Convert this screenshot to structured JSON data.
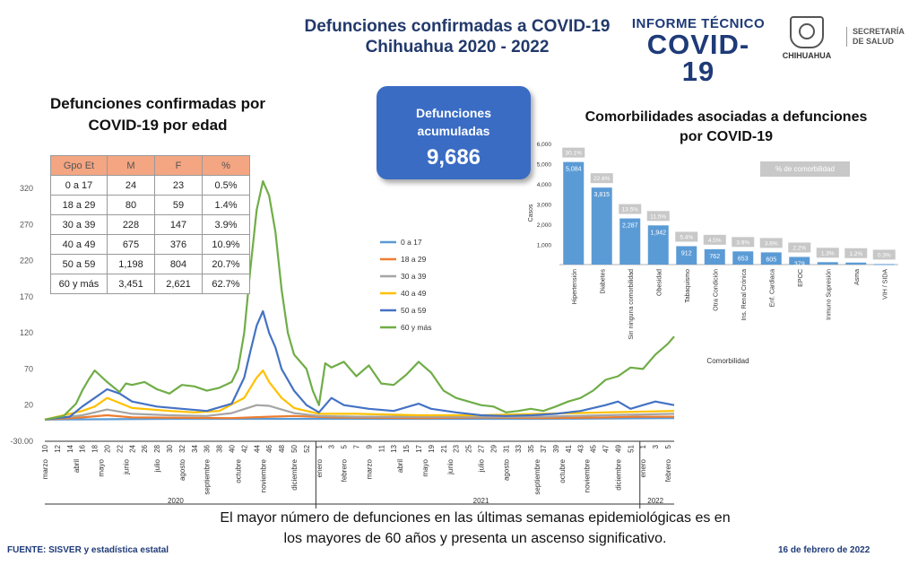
{
  "header": {
    "title_line1": "Defunciones confirmadas a COVID-19",
    "title_line2": "Chihuahua 2020 - 2022",
    "informe_line1": "INFORME TÉCNICO",
    "informe_line2": "COVID-19",
    "state_name": "CHIHUAHUA",
    "secretaria_line1": "SECRETARÍA",
    "secretaria_line2": "DE SALUD"
  },
  "age_section": {
    "title_line1": "Defunciones confirmadas por",
    "title_line2": "COVID-19 por edad",
    "headers": [
      "Gpo Et",
      "M",
      "F",
      "%"
    ],
    "rows": [
      [
        "0 a 17",
        "24",
        "23",
        "0.5%"
      ],
      [
        "18 a 29",
        "80",
        "59",
        "1.4%"
      ],
      [
        "30 a 39",
        "228",
        "147",
        "3.9%"
      ],
      [
        "40 a 49",
        "675",
        "376",
        "10.9%"
      ],
      [
        "50 a 59",
        "1,198",
        "804",
        "20.7%"
      ],
      [
        "60 y más",
        "3,451",
        "2,621",
        "62.7%"
      ]
    ]
  },
  "accumulated": {
    "label_line1": "Defunciones",
    "label_line2": "acumuladas",
    "value": "9,686"
  },
  "comorbidity_section": {
    "title_line1": "Comorbilidades asociadas a defunciones",
    "title_line2": "por COVID-19",
    "legend_label": "% de comorbilidad"
  },
  "footer": {
    "conclusion_line1": "El mayor número de defunciones en las últimas semanas epidemiológicas es en",
    "conclusion_line2": "los mayores de 60 años y presenta un ascenso significativo.",
    "source": "FUENTE: SISVER y estadística estatal",
    "date": "16 de febrero de 2022"
  },
  "chart_data": [
    {
      "type": "bar",
      "title": "Comorbilidades asociadas a defunciones por COVID-19",
      "ylabel": "Casos",
      "xlabel": "Comorbilidad",
      "ylim": [
        0,
        6000
      ],
      "yticks": [
        "1,000",
        "2,000",
        "3,000",
        "4,000",
        "5,000",
        "6,000"
      ],
      "ytick_values": [
        1000,
        2000,
        3000,
        4000,
        5000,
        6000
      ],
      "categories": [
        "Hipertensión",
        "Diabetes",
        "Sin ninguna comorbilidad",
        "Obesidad",
        "Tabaquismo",
        "Otra Condición",
        "Ins. Renal Crónica",
        "Enf. Cardiaca",
        "EPOC",
        "Inmuno Supresión",
        "Asma",
        "VIH / SIDA"
      ],
      "values": [
        5084,
        3815,
        2287,
        1942,
        912,
        762,
        653,
        605,
        379,
        120,
        100,
        25
      ],
      "value_labels": [
        "5,084",
        "3,815",
        "2,287",
        "1,942",
        "912",
        "762",
        "653",
        "605",
        "379",
        "",
        "",
        ""
      ],
      "percent_labels": [
        "30.1%",
        "22.6%",
        "13.5%",
        "11.5%",
        "5.4%",
        "4.5%",
        "3.9%",
        "3.6%",
        "2.2%",
        "1.3%",
        "1.2%",
        "0.3%"
      ],
      "bar_color": "#5b9bd5",
      "percent_box_color": "#c8c8c8",
      "grid": false
    },
    {
      "type": "line",
      "ylim": [
        -30,
        330
      ],
      "yticks": [
        "-30.00",
        "20",
        "70",
        "120",
        "170",
        "220",
        "270",
        "320"
      ],
      "ytick_values": [
        -30,
        20,
        70,
        120,
        170,
        220,
        270,
        320
      ],
      "week_labels": [
        "10",
        "12",
        "14",
        "16",
        "18",
        "20",
        "22",
        "24",
        "26",
        "28",
        "30",
        "32",
        "34",
        "36",
        "38",
        "40",
        "42",
        "44",
        "46",
        "48",
        "50",
        "52",
        "1",
        "3",
        "5",
        "7",
        "9",
        "11",
        "13",
        "15",
        "17",
        "19",
        "21",
        "23",
        "25",
        "27",
        "29",
        "31",
        "33",
        "35",
        "37",
        "39",
        "41",
        "43",
        "45",
        "47",
        "49",
        "51",
        "1",
        "3",
        "5"
      ],
      "months": [
        {
          "label": "marzo",
          "week_index": 0
        },
        {
          "label": "abril",
          "week_index": 5
        },
        {
          "label": "mayo",
          "week_index": 9
        },
        {
          "label": "junio",
          "week_index": 13
        },
        {
          "label": "julio",
          "week_index": 18
        },
        {
          "label": "agosto",
          "week_index": 22
        },
        {
          "label": "septiembre",
          "week_index": 26
        },
        {
          "label": "octubre",
          "week_index": 31
        },
        {
          "label": "noviembre",
          "week_index": 35
        },
        {
          "label": "diciembre",
          "week_index": 40
        },
        {
          "label": "enero",
          "week_index": 44
        },
        {
          "label": "febrero",
          "week_index": 48
        },
        {
          "label": "marzo",
          "week_index": 52
        },
        {
          "label": "abril",
          "week_index": 57
        },
        {
          "label": "mayo",
          "week_index": 61
        },
        {
          "label": "junio",
          "week_index": 65
        },
        {
          "label": "julio",
          "week_index": 70
        },
        {
          "label": "agosto",
          "week_index": 74
        },
        {
          "label": "septiembre",
          "week_index": 79
        },
        {
          "label": "octubre",
          "week_index": 83
        },
        {
          "label": "noviembre",
          "week_index": 87
        },
        {
          "label": "diciembre",
          "week_index": 92
        },
        {
          "label": "enero",
          "week_index": 96
        },
        {
          "label": "febrero",
          "week_index": 100
        }
      ],
      "years": [
        {
          "label": "2020",
          "week_index": 21
        },
        {
          "label": "2021",
          "week_index": 70
        },
        {
          "label": "2022",
          "week_index": 98
        }
      ],
      "year_boundaries": [
        43.5,
        95.5
      ],
      "n_weeks": 102,
      "series": [
        {
          "name": "0 a 17",
          "color": "#5b9bd5",
          "x": [
            0,
            20,
            40,
            60,
            80,
            101
          ],
          "values": [
            0,
            1,
            1,
            1,
            1,
            2
          ]
        },
        {
          "name": "18 a 29",
          "color": "#ed7d31",
          "x": [
            0,
            6,
            10,
            14,
            30,
            36,
            40,
            46,
            60,
            70,
            80,
            90,
            95,
            101
          ],
          "values": [
            0,
            3,
            6,
            3,
            2,
            4,
            5,
            3,
            2,
            3,
            2,
            3,
            4,
            4
          ]
        },
        {
          "name": "30 a 39",
          "color": "#a5a5a5",
          "x": [
            0,
            6,
            8,
            10,
            14,
            20,
            26,
            30,
            34,
            36,
            38,
            40,
            44,
            50,
            60,
            70,
            80,
            90,
            101
          ],
          "values": [
            0,
            6,
            10,
            14,
            8,
            6,
            5,
            9,
            20,
            19,
            14,
            9,
            5,
            4,
            4,
            4,
            4,
            6,
            8
          ]
        },
        {
          "name": "40 a 49",
          "color": "#ffc000",
          "x": [
            0,
            6,
            8,
            10,
            14,
            20,
            24,
            28,
            32,
            34,
            35,
            36,
            38,
            40,
            44,
            50,
            60,
            70,
            80,
            90,
            101
          ],
          "values": [
            0,
            12,
            18,
            30,
            16,
            12,
            10,
            12,
            30,
            58,
            68,
            52,
            30,
            16,
            8,
            8,
            6,
            6,
            8,
            10,
            12
          ]
        },
        {
          "name": "50 a 59",
          "color": "#4472c4",
          "x": [
            0,
            4,
            6,
            8,
            10,
            12,
            14,
            18,
            22,
            26,
            30,
            32,
            33,
            34,
            35,
            36,
            37,
            38,
            40,
            42,
            44,
            46,
            48,
            52,
            56,
            60,
            62,
            66,
            70,
            74,
            78,
            82,
            86,
            90,
            92,
            94,
            96,
            98,
            101
          ],
          "values": [
            0,
            4,
            18,
            30,
            42,
            36,
            25,
            18,
            15,
            12,
            22,
            58,
            95,
            130,
            150,
            120,
            100,
            70,
            40,
            20,
            10,
            30,
            20,
            15,
            12,
            22,
            15,
            10,
            6,
            5,
            6,
            8,
            12,
            20,
            25,
            15,
            20,
            25,
            20
          ]
        },
        {
          "name": "60 y más",
          "color": "#70ad47",
          "x": [
            0,
            3,
            5,
            6,
            7,
            8,
            9,
            10,
            11,
            12,
            13,
            14,
            16,
            18,
            20,
            22,
            24,
            26,
            28,
            30,
            31,
            32,
            33,
            34,
            35,
            36,
            37,
            38,
            39,
            40,
            41,
            42,
            43,
            44,
            45,
            46,
            48,
            50,
            52,
            54,
            56,
            58,
            60,
            62,
            64,
            66,
            68,
            70,
            72,
            74,
            76,
            78,
            80,
            82,
            84,
            86,
            88,
            90,
            92,
            94,
            96,
            98,
            100,
            101
          ],
          "values": [
            0,
            5,
            22,
            40,
            55,
            68,
            60,
            52,
            45,
            38,
            50,
            48,
            52,
            42,
            36,
            48,
            46,
            40,
            44,
            52,
            70,
            120,
            210,
            290,
            330,
            310,
            260,
            180,
            120,
            90,
            80,
            70,
            40,
            20,
            78,
            72,
            80,
            60,
            75,
            50,
            48,
            62,
            80,
            65,
            40,
            30,
            25,
            20,
            18,
            10,
            12,
            15,
            12,
            18,
            25,
            30,
            40,
            55,
            60,
            72,
            70,
            90,
            105,
            115
          ]
        }
      ],
      "grid": false
    }
  ]
}
